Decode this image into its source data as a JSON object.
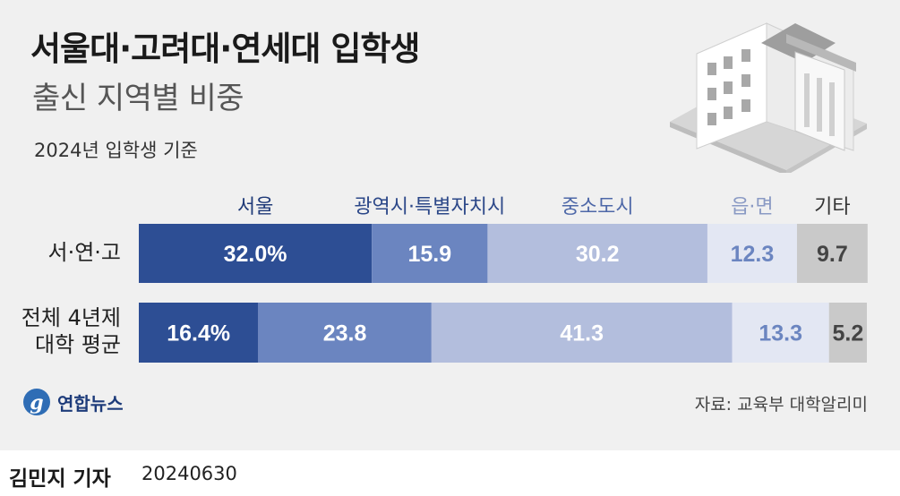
{
  "title": "서울대·고려대·연세대 입학생",
  "subtitle": "출신 지역별 비중",
  "basis_note": "2024년 입학생 기준",
  "source": "자료: 교육부 대학알리미",
  "logo_text": "연합뉴스",
  "reporter": "김민지 기자",
  "date": "20240630",
  "colors": {
    "seoul": "#2d4e94",
    "metro": "#6b85c0",
    "city": "#b3bedd",
    "town": "#e3e7f3",
    "other": "#c9c9c9"
  },
  "chart_data": {
    "type": "bar",
    "orientation": "horizontal",
    "stacked": true,
    "unit": "%",
    "categories": [
      "서·연·고",
      "전체 4년제 대학 평균"
    ],
    "category_display": [
      [
        "서·연·고"
      ],
      [
        "전체 4년제",
        "대학 평균"
      ]
    ],
    "series": [
      {
        "name": "서울",
        "values": [
          32.0,
          16.4
        ],
        "labels": [
          "32.0%",
          "16.4%"
        ],
        "color": "#2d4e94",
        "label_color": "#ffffff",
        "legend_color": "#1f3a78"
      },
      {
        "name": "광역시·특별자치시",
        "values": [
          15.9,
          23.8
        ],
        "labels": [
          "15.9",
          "23.8"
        ],
        "color": "#6b85c0",
        "label_color": "#ffffff",
        "legend_color": "#2b4788"
      },
      {
        "name": "중소도시",
        "values": [
          30.2,
          41.3
        ],
        "labels": [
          "30.2",
          "41.3"
        ],
        "color": "#b3bedd",
        "label_color": "#ffffff",
        "legend_color": "#4e68a8"
      },
      {
        "name": "읍·면",
        "values": [
          12.3,
          13.3
        ],
        "labels": [
          "12.3",
          "13.3"
        ],
        "color": "#e3e7f3",
        "label_color": "#6b85c0",
        "legend_color": "#8a9ac4"
      },
      {
        "name": "기타",
        "values": [
          9.7,
          5.2
        ],
        "labels": [
          "9.7",
          "5.2"
        ],
        "color": "#c9c9c9",
        "label_color": "#444444",
        "legend_color": "#333333"
      }
    ],
    "xlim": [
      0,
      100
    ]
  }
}
